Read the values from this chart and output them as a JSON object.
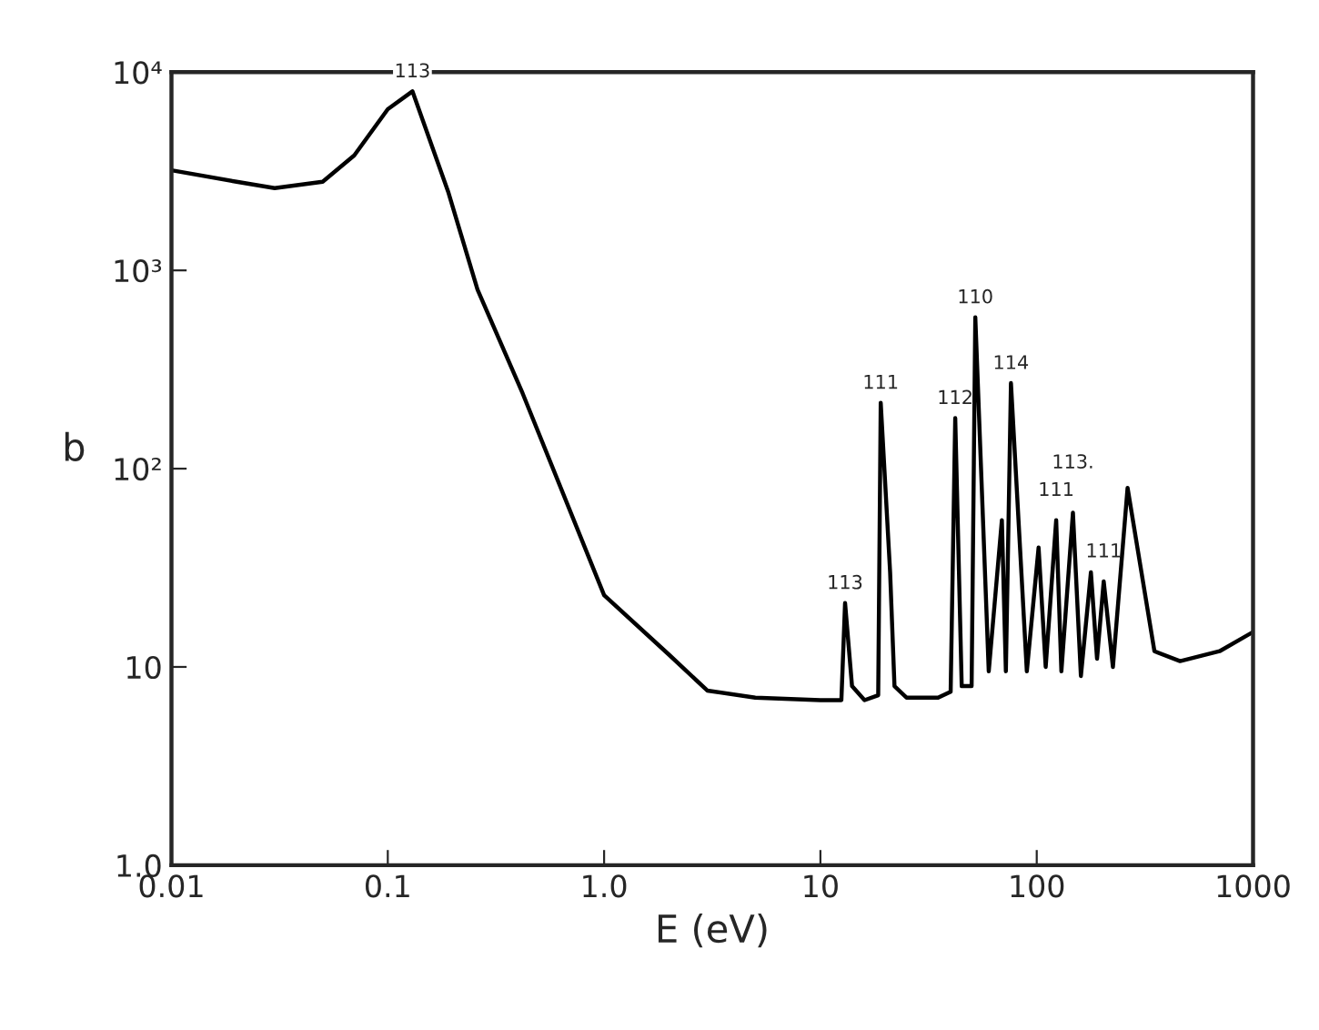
{
  "chart_data": {
    "type": "line",
    "xlabel": "E (eV)",
    "ylabel": "b",
    "log": "xy",
    "grid": false,
    "xlim": [
      0.01,
      1000
    ],
    "ylim": [
      1,
      10000
    ],
    "xticks": [
      {
        "value": 0.01,
        "label": "0.01"
      },
      {
        "value": 0.1,
        "label": "0.1"
      },
      {
        "value": 1,
        "label": "1.0"
      },
      {
        "value": 10,
        "label": "10"
      },
      {
        "value": 100,
        "label": "100"
      },
      {
        "value": 1000,
        "label": "1000"
      }
    ],
    "yticks": [
      {
        "value": 1,
        "label": "1.0"
      },
      {
        "value": 10,
        "label": "10"
      },
      {
        "value": 100,
        "label": "10²"
      },
      {
        "value": 1000,
        "label": "10³"
      },
      {
        "value": 10000,
        "label": "10⁴"
      }
    ],
    "series": [
      {
        "color": "#000000",
        "x": [
          0.01,
          0.02,
          0.03,
          0.05,
          0.07,
          0.1,
          0.13,
          0.19,
          0.26,
          0.42,
          1.0,
          2.0,
          3.0,
          5.0,
          10,
          12.5,
          13,
          14,
          16,
          18.5,
          19,
          21,
          22,
          25,
          35,
          40,
          42,
          45,
          50,
          52,
          60,
          69,
          72,
          76,
          90,
          102,
          110,
          123,
          130,
          147,
          160,
          178,
          190,
          204,
          225,
          263,
          350,
          460,
          700,
          1000
        ],
        "values": [
          3200,
          2800,
          2600,
          2800,
          3800,
          6500,
          8000,
          2500,
          800,
          240,
          23,
          11.5,
          7.6,
          7,
          6.8,
          6.8,
          21,
          8,
          6.8,
          7.2,
          215,
          30,
          8,
          7,
          7,
          7.5,
          180,
          8,
          8,
          580,
          9.5,
          55,
          9.5,
          270,
          9.5,
          40,
          10,
          55,
          9.5,
          60,
          9,
          30,
          11,
          27,
          10,
          80,
          12,
          10.7,
          12,
          15
        ]
      }
    ],
    "annotations": [
      {
        "text": "113",
        "x": 0.13,
        "y": 8000
      },
      {
        "text": "113",
        "x": 13,
        "y": 21
      },
      {
        "text": "111",
        "x": 19,
        "y": 215
      },
      {
        "text": "112",
        "x": 42,
        "y": 180
      },
      {
        "text": "110",
        "x": 52,
        "y": 580
      },
      {
        "text": "114",
        "x": 76,
        "y": 270
      },
      {
        "text": "111",
        "x": 123,
        "y": 55
      },
      {
        "text": "113.",
        "x": 147,
        "y": 60
      },
      {
        "text": "111",
        "x": 204,
        "y": 27
      }
    ]
  }
}
